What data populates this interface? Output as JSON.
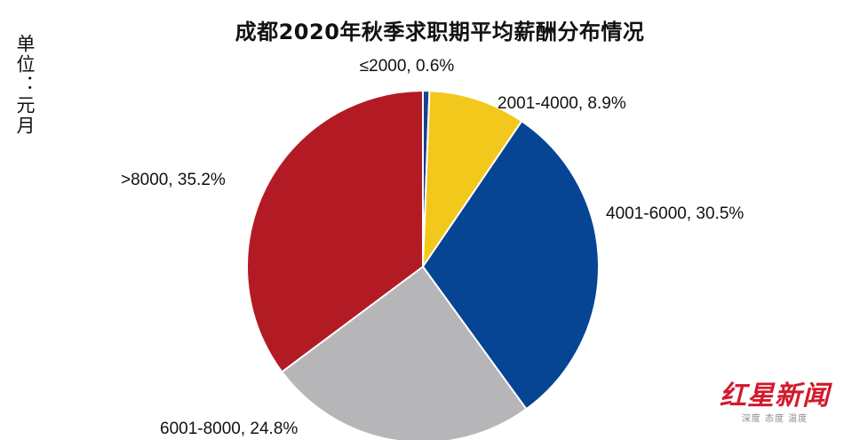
{
  "chart_data": {
    "type": "pie",
    "title": "成都2020年秋季求职期平均薪酬分布情况",
    "unit_label": "单位：元月",
    "start_angle_deg": 0,
    "direction": "clockwise",
    "slices": [
      {
        "label": "≤2000, 0.6%",
        "category": "≤2000",
        "value": 0.6,
        "color": "#1f3f8f"
      },
      {
        "label": "2001-4000, 8.9%",
        "category": "2001-4000",
        "value": 8.9,
        "color": "#f2c81c"
      },
      {
        "label": "4001-6000, 30.5%",
        "category": "4001-6000",
        "value": 30.5,
        "color": "#064494"
      },
      {
        "label": "6001-8000, 24.8%",
        "category": "6001-8000",
        "value": 24.8,
        "color": "#b6b6b8"
      },
      {
        "label": ">8000, 35.2%",
        "category": ">8000",
        "value": 35.2,
        "color": "#b31b24"
      }
    ]
  },
  "watermark": {
    "brand": "红星新闻",
    "slogan": "深度 态度 温度"
  }
}
